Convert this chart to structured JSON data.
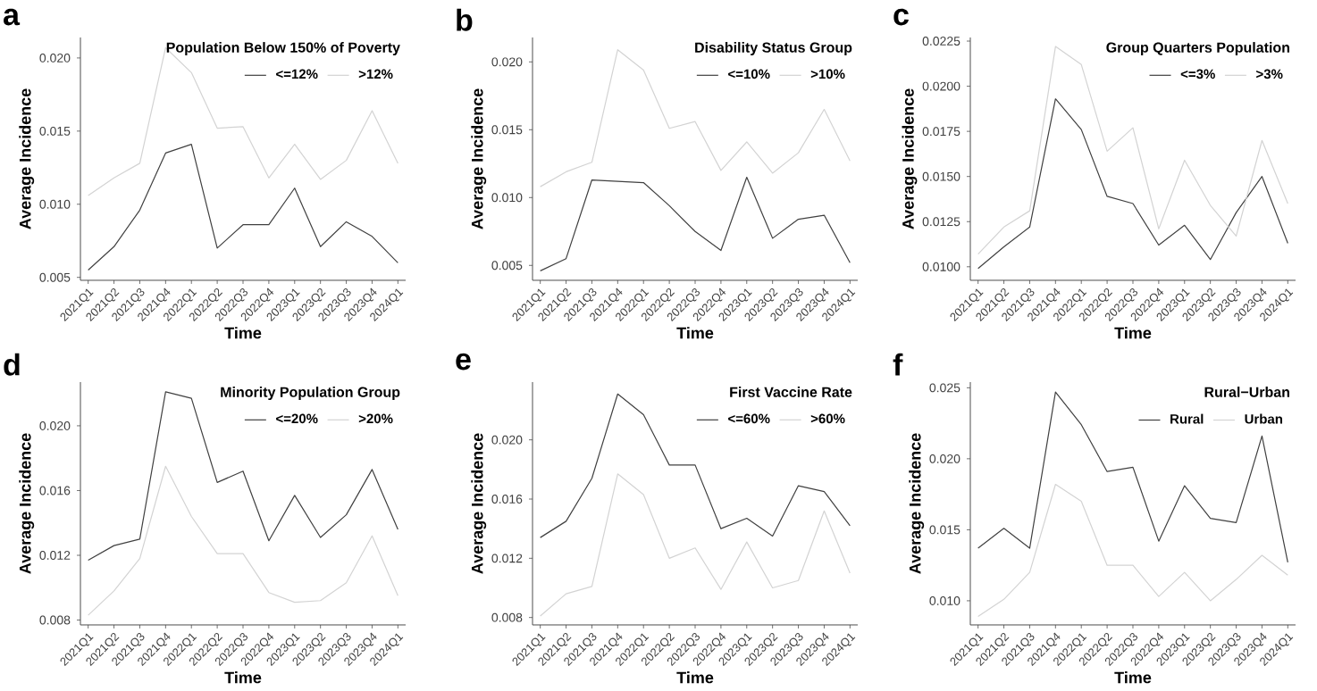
{
  "chart_data": [
    {
      "type": "line",
      "annotations": [
        "a"
      ],
      "legend_title": "Population Below 150% of Poverty",
      "xlabel": "Time",
      "ylabel": "Average Incidence",
      "legend": "top right",
      "categories": [
        "2021Q1",
        "2021Q2",
        "2021Q3",
        "2021Q4",
        "2022Q1",
        "2022Q2",
        "2022Q3",
        "2022Q4",
        "2023Q1",
        "2023Q2",
        "2023Q3",
        "2023Q4",
        "2024Q1"
      ],
      "ylim": [
        0.0048,
        0.0214
      ],
      "yticks": [
        {
          "value": 0.005,
          "label": "0.005"
        },
        {
          "value": 0.01,
          "label": "0.010"
        },
        {
          "value": 0.015,
          "label": "0.015"
        },
        {
          "value": 0.02,
          "label": "0.020"
        }
      ],
      "series": [
        {
          "name": "<=12%",
          "color": "#404040",
          "values": [
            0.0055,
            0.0071,
            0.0096,
            0.0135,
            0.0141,
            0.007,
            0.0086,
            0.0086,
            0.0111,
            0.0071,
            0.0088,
            0.0078,
            0.006
          ]
        },
        {
          "name": ">12%",
          "color": "#d3d3d3",
          "values": [
            0.0106,
            0.0118,
            0.0128,
            0.0207,
            0.019,
            0.0152,
            0.0153,
            0.0118,
            0.0141,
            0.0117,
            0.013,
            0.0164,
            0.0128
          ]
        }
      ]
    },
    {
      "type": "line",
      "annotations": [
        "b"
      ],
      "legend_title": "Disability Status Group",
      "xlabel": "Time",
      "ylabel": "Average Incidence",
      "legend": "top right",
      "categories": [
        "2021Q1",
        "2021Q2",
        "2021Q3",
        "2021Q4",
        "2022Q1",
        "2022Q2",
        "2022Q3",
        "2022Q4",
        "2023Q1",
        "2023Q2",
        "2023Q3",
        "2023Q4",
        "2024Q1"
      ],
      "ylim": [
        0.0039,
        0.0218
      ],
      "yticks": [
        {
          "value": 0.005,
          "label": "0.005"
        },
        {
          "value": 0.01,
          "label": "0.010"
        },
        {
          "value": 0.015,
          "label": "0.015"
        },
        {
          "value": 0.02,
          "label": "0.020"
        }
      ],
      "series": [
        {
          "name": "<=10%",
          "color": "#404040",
          "values": [
            0.0046,
            0.0055,
            0.0113,
            0.0112,
            0.0111,
            0.0094,
            0.0075,
            0.0061,
            0.0115,
            0.007,
            0.0084,
            0.0087,
            0.0052
          ]
        },
        {
          "name": ">10%",
          "color": "#d3d3d3",
          "values": [
            0.0108,
            0.0119,
            0.0126,
            0.0209,
            0.0194,
            0.0151,
            0.0156,
            0.012,
            0.0141,
            0.0118,
            0.0133,
            0.0165,
            0.0127
          ]
        }
      ]
    },
    {
      "type": "line",
      "annotations": [
        "c"
      ],
      "legend_title": "Group Quarters Population",
      "xlabel": "Time",
      "ylabel": "Average Incidence",
      "legend": "top right",
      "categories": [
        "2021Q1",
        "2021Q2",
        "2021Q3",
        "2021Q4",
        "2022Q1",
        "2022Q2",
        "2022Q3",
        "2022Q4",
        "2023Q1",
        "2023Q2",
        "2023Q3",
        "2023Q4",
        "2024Q1"
      ],
      "ylim": [
        0.00925,
        0.0227
      ],
      "yticks": [
        {
          "value": 0.01,
          "label": "0.0100"
        },
        {
          "value": 0.0125,
          "label": "0.0125"
        },
        {
          "value": 0.015,
          "label": "0.0150"
        },
        {
          "value": 0.0175,
          "label": "0.0175"
        },
        {
          "value": 0.02,
          "label": "0.0200"
        },
        {
          "value": 0.0225,
          "label": "0.0225"
        }
      ],
      "series": [
        {
          "name": "<=3%",
          "color": "#404040",
          "values": [
            0.0099,
            0.0111,
            0.0122,
            0.0193,
            0.0176,
            0.0139,
            0.0135,
            0.0112,
            0.0123,
            0.0104,
            0.013,
            0.015,
            0.0113
          ]
        },
        {
          "name": ">3%",
          "color": "#d3d3d3",
          "values": [
            0.0107,
            0.0122,
            0.0131,
            0.0222,
            0.0212,
            0.0164,
            0.0177,
            0.0121,
            0.0159,
            0.0134,
            0.0117,
            0.017,
            0.0135
          ]
        }
      ]
    },
    {
      "type": "line",
      "annotations": [
        "d"
      ],
      "legend_title": "Minority Population Group",
      "xlabel": "Time",
      "ylabel": "Average Incidence",
      "legend": "top right",
      "categories": [
        "2021Q1",
        "2021Q2",
        "2021Q3",
        "2021Q4",
        "2022Q1",
        "2022Q2",
        "2022Q3",
        "2022Q4",
        "2023Q1",
        "2023Q2",
        "2023Q3",
        "2023Q4",
        "2024Q1"
      ],
      "ylim": [
        0.0077,
        0.0227
      ],
      "yticks": [
        {
          "value": 0.008,
          "label": "0.008"
        },
        {
          "value": 0.012,
          "label": "0.012"
        },
        {
          "value": 0.016,
          "label": "0.016"
        },
        {
          "value": 0.02,
          "label": "0.020"
        }
      ],
      "series": [
        {
          "name": "<=20%",
          "color": "#404040",
          "values": [
            0.0117,
            0.0126,
            0.013,
            0.0221,
            0.0217,
            0.0165,
            0.0172,
            0.0129,
            0.0157,
            0.0131,
            0.0145,
            0.0173,
            0.0136
          ]
        },
        {
          "name": ">20%",
          "color": "#d3d3d3",
          "values": [
            0.0083,
            0.0098,
            0.0118,
            0.0175,
            0.0144,
            0.0121,
            0.0121,
            0.0097,
            0.0091,
            0.0092,
            0.0103,
            0.0132,
            0.0095
          ]
        }
      ]
    },
    {
      "type": "line",
      "annotations": [
        "e"
      ],
      "legend_title": "First Vaccine Rate",
      "xlabel": "Time",
      "ylabel": "Average Incidence",
      "legend": "top right",
      "categories": [
        "2021Q1",
        "2021Q2",
        "2021Q3",
        "2021Q4",
        "2022Q1",
        "2022Q2",
        "2022Q3",
        "2022Q4",
        "2023Q1",
        "2023Q2",
        "2023Q3",
        "2023Q4",
        "2024Q1"
      ],
      "ylim": [
        0.0075,
        0.0239
      ],
      "yticks": [
        {
          "value": 0.008,
          "label": "0.008"
        },
        {
          "value": 0.012,
          "label": "0.012"
        },
        {
          "value": 0.016,
          "label": "0.016"
        },
        {
          "value": 0.02,
          "label": "0.020"
        }
      ],
      "series": [
        {
          "name": "<=60%",
          "color": "#404040",
          "values": [
            0.0134,
            0.0145,
            0.0174,
            0.0231,
            0.0217,
            0.0183,
            0.0183,
            0.014,
            0.0147,
            0.0135,
            0.0169,
            0.0165,
            0.0142
          ]
        },
        {
          "name": ">60%",
          "color": "#d3d3d3",
          "values": [
            0.0081,
            0.0096,
            0.0101,
            0.0177,
            0.0163,
            0.012,
            0.0127,
            0.0099,
            0.0131,
            0.01,
            0.0105,
            0.0152,
            0.011
          ]
        }
      ]
    },
    {
      "type": "line",
      "annotations": [
        "f"
      ],
      "legend_title": "Rural−Urban",
      "xlabel": "Time",
      "ylabel": "Average Incidence",
      "legend": "top right",
      "categories": [
        "2021Q1",
        "2021Q2",
        "2021Q3",
        "2021Q4",
        "2022Q1",
        "2022Q2",
        "2022Q3",
        "2022Q4",
        "2023Q1",
        "2023Q2",
        "2023Q3",
        "2023Q4",
        "2024Q1"
      ],
      "ylim": [
        0.0083,
        0.0254
      ],
      "yticks": [
        {
          "value": 0.01,
          "label": "0.010"
        },
        {
          "value": 0.015,
          "label": "0.015"
        },
        {
          "value": 0.02,
          "label": "0.020"
        },
        {
          "value": 0.025,
          "label": "0.025"
        }
      ],
      "series": [
        {
          "name": "Rural",
          "color": "#404040",
          "values": [
            0.0137,
            0.0151,
            0.0137,
            0.0247,
            0.0224,
            0.0191,
            0.0194,
            0.0142,
            0.0181,
            0.0158,
            0.0155,
            0.0216,
            0.0127
          ]
        },
        {
          "name": "Urban",
          "color": "#d3d3d3",
          "values": [
            0.0089,
            0.0101,
            0.012,
            0.0182,
            0.017,
            0.0125,
            0.0125,
            0.0103,
            0.012,
            0.01,
            0.0115,
            0.0132,
            0.0118
          ]
        }
      ]
    }
  ]
}
